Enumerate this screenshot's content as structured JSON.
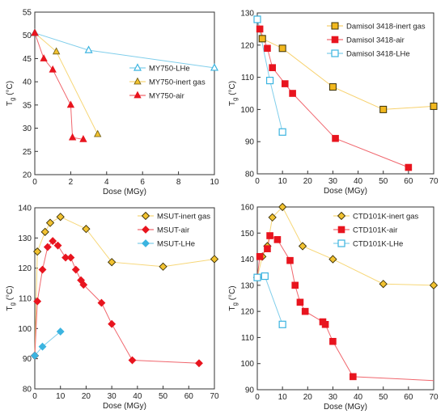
{
  "chart_data": [
    {
      "type": "scatter",
      "ylabel": "T",
      "ylabel_sub": "g",
      "ylabel_unit": " (°C)",
      "xlabel": "Dose (MGy)",
      "xlim": [
        0,
        10
      ],
      "ylim": [
        20,
        55
      ],
      "xticks": [
        0,
        2,
        4,
        6,
        8,
        10
      ],
      "yticks": [
        20,
        25,
        30,
        35,
        40,
        45,
        50,
        55
      ],
      "grid": false,
      "legend_position": "right",
      "series": [
        {
          "name": "MY750-LHe",
          "color": "#3BB4E0",
          "marker": "triangle-open",
          "x": [
            0,
            3,
            10
          ],
          "y": [
            50.5,
            46.8,
            43
          ]
        },
        {
          "name": "MY750-inert gas",
          "color": "#F2C230",
          "marker": "triangle-filled",
          "x": [
            0,
            1.2,
            3.5
          ],
          "y": [
            50.5,
            46.5,
            28.7
          ]
        },
        {
          "name": "MY750-air",
          "color": "#E8141E",
          "marker": "triangle-filled",
          "x": [
            0,
            0.5,
            1,
            2,
            2.1,
            2.7
          ],
          "y": [
            50.5,
            45,
            42.6,
            35,
            28,
            27.6
          ]
        }
      ]
    },
    {
      "type": "scatter",
      "ylabel": "T",
      "ylabel_sub": "g",
      "ylabel_unit": " (°C)",
      "xlabel": "Dose (MGy)",
      "xlim": [
        0,
        70
      ],
      "ylim": [
        80,
        130
      ],
      "xticks": [
        0,
        10,
        20,
        30,
        40,
        50,
        60,
        70
      ],
      "yticks": [
        80,
        90,
        100,
        110,
        120,
        130
      ],
      "grid": false,
      "legend_position": "top-right",
      "series": [
        {
          "name": "Damisol 3418-inert gas",
          "color": "#F2B81E",
          "marker": "square-filled-dark-edge",
          "x": [
            0,
            2,
            10,
            30,
            50,
            70
          ],
          "y": [
            128,
            122,
            119,
            107,
            100,
            101
          ]
        },
        {
          "name": "Damisol 3418-air",
          "color": "#E8141E",
          "marker": "square-filled",
          "x": [
            0,
            1,
            4,
            6,
            11,
            14,
            31,
            60
          ],
          "y": [
            128,
            125,
            119,
            113,
            108,
            105,
            91,
            82
          ]
        },
        {
          "name": "Damisol 3418-LHe",
          "color": "#3BB4E0",
          "marker": "square-open",
          "x": [
            0,
            5,
            10
          ],
          "y": [
            128,
            109,
            93
          ]
        }
      ]
    },
    {
      "type": "scatter",
      "ylabel": "T",
      "ylabel_sub": "g",
      "ylabel_unit": " (°C)",
      "xlabel": "Dose (MGy)",
      "xlim": [
        0,
        70
      ],
      "ylim": [
        80,
        140
      ],
      "xticks": [
        0,
        10,
        20,
        30,
        40,
        50,
        60,
        70
      ],
      "yticks": [
        80,
        90,
        100,
        110,
        120,
        130,
        140
      ],
      "grid": false,
      "legend_position": "top-right",
      "series": [
        {
          "name": "MSUT-inert gas",
          "color": "#F2C230",
          "marker": "diamond-filled-dark-edge",
          "x": [
            0,
            1,
            4,
            6,
            10,
            20,
            30,
            50,
            70
          ],
          "y": [
            91,
            125.5,
            132,
            135,
            137,
            133,
            122,
            120.5,
            123
          ]
        },
        {
          "name": "MSUT-air",
          "color": "#E8141E",
          "marker": "diamond-filled",
          "x": [
            0,
            1,
            3,
            5,
            7,
            9,
            12,
            14,
            16,
            18,
            19,
            26,
            30,
            38,
            64
          ],
          "y": [
            91,
            109,
            119.5,
            127,
            129,
            127.5,
            123.5,
            123.5,
            119.5,
            116,
            114.5,
            108.5,
            101.5,
            89.5,
            88.5
          ]
        },
        {
          "name": "MSUT-LHe",
          "color": "#3BB4E0",
          "marker": "diamond-filled",
          "x": [
            0,
            3,
            10
          ],
          "y": [
            91,
            94,
            99
          ]
        }
      ]
    },
    {
      "type": "scatter",
      "ylabel": "T",
      "ylabel_sub": "g",
      "ylabel_unit": " (°C)",
      "xlabel": "Dose (MGy)",
      "xlim": [
        0,
        70
      ],
      "ylim": [
        90,
        160
      ],
      "xticks": [
        0,
        10,
        20,
        30,
        40,
        50,
        60,
        70
      ],
      "yticks": [
        90,
        100,
        110,
        120,
        130,
        140,
        150,
        160
      ],
      "grid": false,
      "legend_position": "top-right",
      "series": [
        {
          "name": "CTD101K-inert gas",
          "color": "#F2C230",
          "marker": "diamond-filled-dark-edge",
          "x": [
            0,
            2,
            4,
            6,
            10,
            18,
            30,
            50,
            70
          ],
          "y": [
            133,
            141,
            145,
            156,
            160,
            145,
            140,
            130.5,
            130
          ]
        },
        {
          "name": "CTD101K-air",
          "color": "#E8141E",
          "marker": "square-filled",
          "x": [
            0,
            1,
            4,
            5,
            8,
            13,
            15,
            17,
            19,
            26,
            27,
            30,
            38
          ],
          "y": [
            133,
            141,
            144,
            149,
            147.5,
            139.5,
            130,
            123.5,
            120,
            116,
            115,
            108.5,
            95
          ]
        },
        {
          "name": "CTD101K-LHe",
          "color": "#3BB4E0",
          "marker": "square-open",
          "x": [
            0,
            3,
            10
          ],
          "y": [
            133,
            133.5,
            115
          ]
        }
      ],
      "extra_line": {
        "color": "#E8141E",
        "x": [
          38,
          70
        ],
        "y": [
          95,
          93.5
        ]
      }
    }
  ]
}
